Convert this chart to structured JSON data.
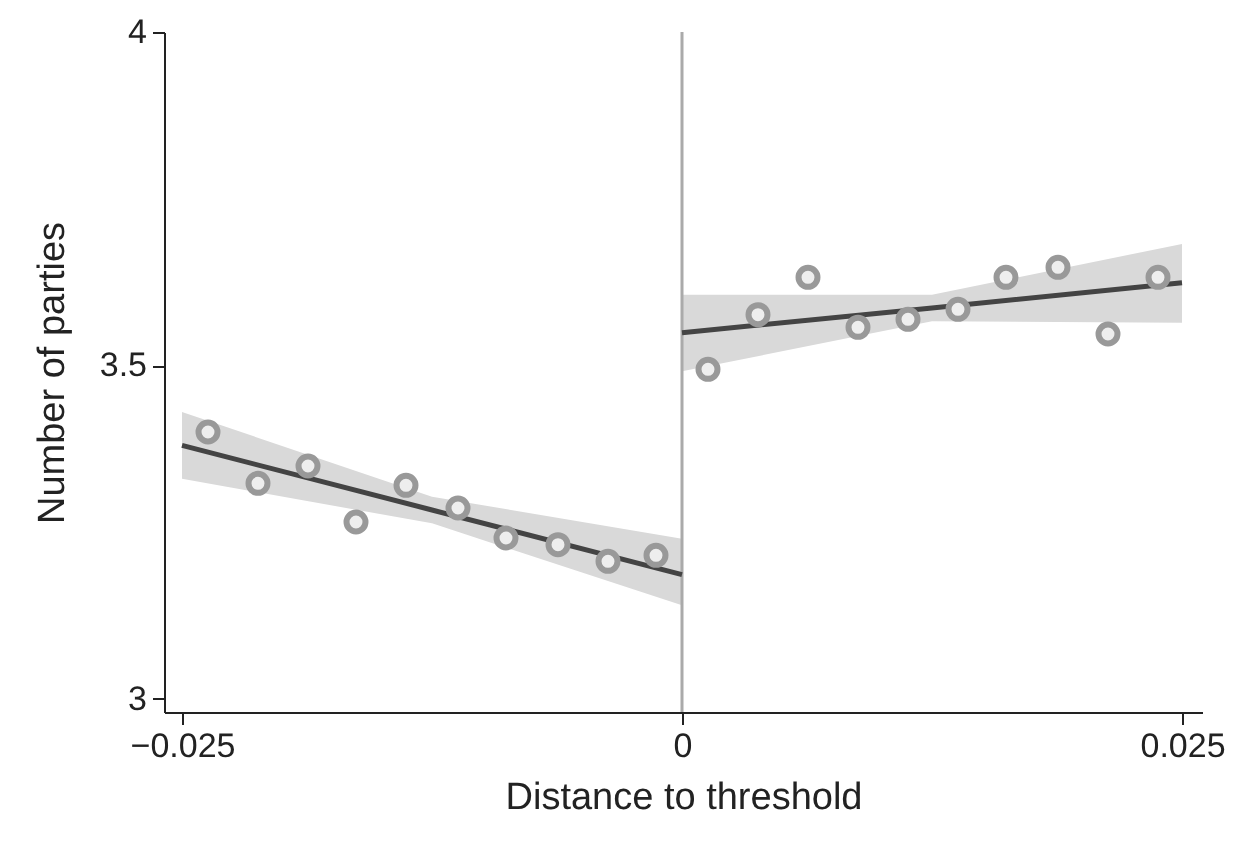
{
  "chart_data": {
    "type": "scatter",
    "xlabel": "Distance to threshold",
    "ylabel": "Number of parties",
    "xlim": [
      -0.0259,
      0.026
    ],
    "ylim": [
      2.98,
      4.0
    ],
    "xticks": [
      {
        "value": -0.025,
        "label": "−0.025"
      },
      0,
      0.025
    ],
    "yticks": [
      3,
      3.5,
      4
    ],
    "grid": false,
    "series": [
      {
        "type": "line",
        "color": "#444444",
        "x": [
          -0.025,
          -0.0125,
          0
        ],
        "values": [
          3.38,
          3.283,
          3.186
        ],
        "lower": [
          3.33,
          3.263,
          3.14
        ],
        "upper": [
          3.43,
          3.303,
          3.24
        ]
      },
      {
        "type": "line",
        "color": "#444444",
        "x": [
          0,
          0.0125,
          0.025
        ],
        "values": [
          3.549,
          3.586,
          3.624
        ],
        "lower": [
          3.491,
          3.566,
          3.564
        ],
        "upper": [
          3.606,
          3.606,
          3.682
        ]
      },
      {
        "color": "#999999",
        "x": [
          -0.0237,
          -0.0212,
          -0.0187,
          -0.0163,
          -0.0138,
          -0.0112,
          -0.0088,
          -0.0062,
          -0.0037,
          -0.0013
        ],
        "values": [
          3.4,
          3.323,
          3.349,
          3.265,
          3.32,
          3.286,
          3.241,
          3.231,
          3.206,
          3.215
        ]
      },
      {
        "color": "#999999",
        "x": [
          0.0013,
          0.0038,
          0.0063,
          0.0088,
          0.0113,
          0.0138,
          0.0162,
          0.0188,
          0.0213,
          0.0238
        ],
        "values": [
          3.494,
          3.576,
          3.632,
          3.557,
          3.569,
          3.584,
          3.632,
          3.647,
          3.547,
          3.632
        ]
      }
    ],
    "ref_lines": [
      {
        "axis": "x",
        "value": 0,
        "color": "#aaaaaa"
      }
    ]
  }
}
